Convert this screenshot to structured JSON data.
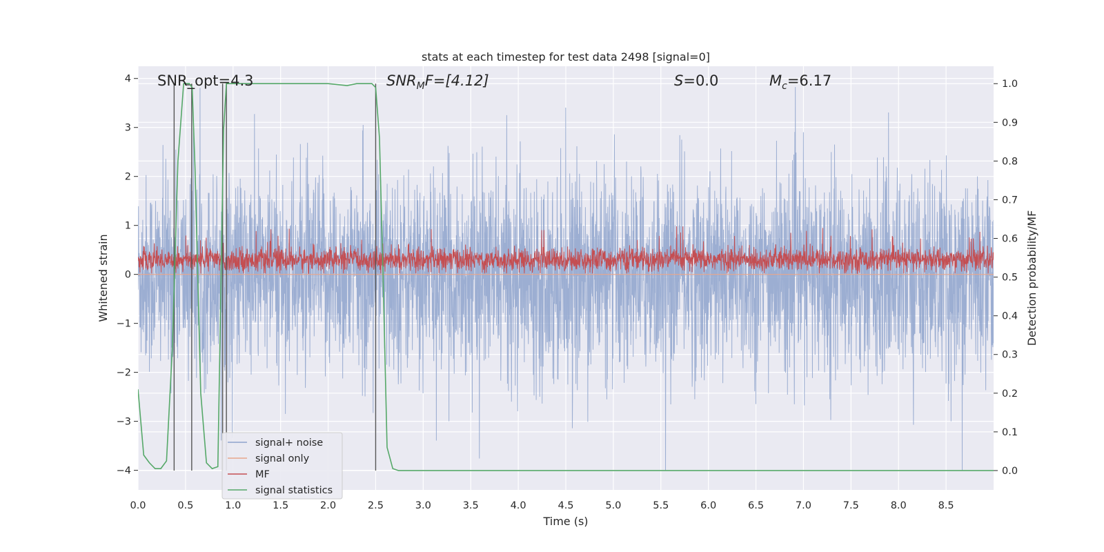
{
  "chart_data": {
    "type": "line",
    "title": "stats at each timestep for test data 2498 [signal=0]",
    "xlabel": "Time (s)",
    "ylabel": "Whitened strain",
    "ylabel_right": "Detection probability/MF",
    "xlim": [
      0,
      9.0
    ],
    "ylim": [
      -4.4,
      4.25
    ],
    "ylim_right": [
      -0.05,
      1.045
    ],
    "x_ticks": [
      0.0,
      0.5,
      1.0,
      1.5,
      2.0,
      2.5,
      3.0,
      3.5,
      4.0,
      4.5,
      5.0,
      5.5,
      6.0,
      6.5,
      7.0,
      7.5,
      8.0,
      8.5
    ],
    "x_tick_labels": [
      "0.0",
      "0.5",
      "1.0",
      "1.5",
      "2.0",
      "2.5",
      "3.0",
      "3.5",
      "4.0",
      "4.5",
      "5.0",
      "5.5",
      "6.0",
      "6.5",
      "7.0",
      "7.5",
      "8.0",
      "8.5"
    ],
    "y_ticks": [
      4,
      3,
      2,
      1,
      0,
      -1,
      -2,
      -3,
      -4
    ],
    "y_tick_labels": [
      "4",
      "3",
      "2",
      "1",
      "0",
      "−1",
      "−2",
      "−3",
      "−4"
    ],
    "y_right_ticks": [
      1.0,
      0.9,
      0.8,
      0.7,
      0.6,
      0.5,
      0.4,
      0.3,
      0.2,
      0.1,
      0.0
    ],
    "y_right_tick_labels": [
      "1.0",
      "0.9",
      "0.8",
      "0.7",
      "0.6",
      "0.5",
      "0.4",
      "0.3",
      "0.2",
      "0.1",
      "0.0"
    ],
    "grid": true,
    "annotations": {
      "snr_opt": "SNR_opt=4.3",
      "snr_mf_sym": "SNR",
      "snr_mf_sub": "M",
      "snr_mf_rest": "F=[4.12]",
      "s_sym": "S",
      "s_rest": "=0.0",
      "mc_sym": "M",
      "mc_sub": "c",
      "mc_rest": "=6.17"
    },
    "legend": {
      "placement": "lower-left",
      "entries": [
        "signal+ noise",
        "signal only",
        "MF",
        "signal statistics"
      ]
    },
    "series": [
      {
        "name": "signal+ noise",
        "axis": "left",
        "color": "#8ea3cc",
        "kind": "noise",
        "envelope": {
          "p99_high": 2.6,
          "p99_low": -2.6,
          "max": 3.9,
          "min": -4.0
        }
      },
      {
        "name": "signal only",
        "axis": "left",
        "color": "#e8a68b",
        "values_constant": 0.0
      },
      {
        "name": "MF",
        "axis": "left",
        "color": "#c44e52",
        "kind": "band",
        "envelope": {
          "low": 0.05,
          "high": 0.65,
          "peaks_max": 1.0
        }
      },
      {
        "name": "signal statistics",
        "axis": "right",
        "color": "#55a868",
        "x": [
          0.0,
          0.06,
          0.12,
          0.18,
          0.24,
          0.3,
          0.36,
          0.42,
          0.48,
          0.54,
          0.57,
          0.6,
          0.66,
          0.72,
          0.78,
          0.84,
          0.9,
          0.93,
          0.96,
          1.2,
          1.5,
          1.8,
          2.0,
          2.2,
          2.3,
          2.4,
          2.46,
          2.5,
          2.54,
          2.58,
          2.62,
          2.68,
          2.74,
          2.8,
          3.0,
          4.0,
          5.0,
          6.0,
          7.0,
          8.0,
          9.0
        ],
        "values": [
          0.21,
          0.04,
          0.02,
          0.005,
          0.005,
          0.025,
          0.31,
          0.8,
          1.0,
          1.0,
          0.99,
          0.78,
          0.2,
          0.02,
          0.005,
          0.01,
          0.88,
          1.0,
          1.0,
          1.0,
          1.0,
          1.0,
          1.0,
          0.995,
          1.0,
          1.0,
          1.0,
          0.99,
          0.86,
          0.48,
          0.06,
          0.005,
          0.0,
          0.0,
          0.0,
          0.0,
          0.0,
          0.0,
          0.0,
          0.0,
          0.0
        ]
      }
    ],
    "marker_lines_x": [
      0.38,
      0.565,
      0.89,
      0.93,
      2.5
    ],
    "marker_hbar": {
      "x": [
        0.51,
        0.57
      ],
      "y": 3.87
    }
  }
}
